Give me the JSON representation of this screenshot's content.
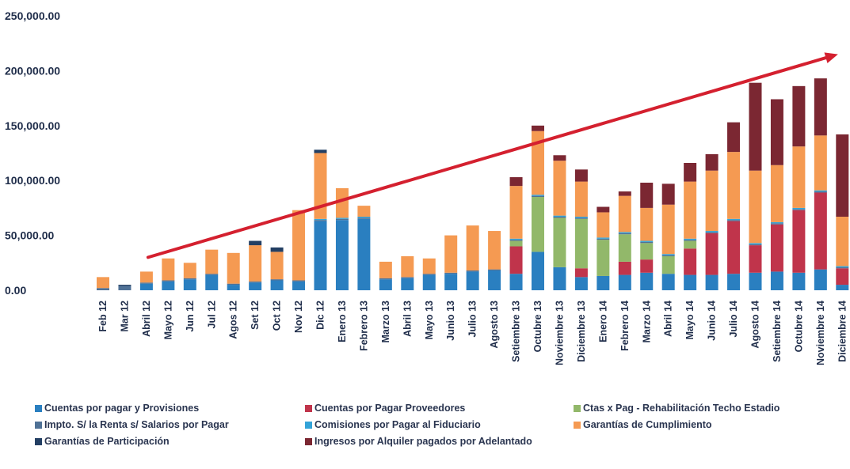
{
  "chart_data": {
    "type": "bar",
    "stacked": true,
    "categories": [
      "Feb 12",
      "Mar 12",
      "Abril 12",
      "Mayo 12",
      "Jun 12",
      "Jul 12",
      "Agos 12",
      "Set 12",
      "Oct 12",
      "Nov 12",
      "Dic 12",
      "Enero 13",
      "Febrero 13",
      "Marzo 13",
      "Abril 13",
      "Mayo 13",
      "Junio 13",
      "Julio 13",
      "Agosto 13",
      "Setiembre 13",
      "Octubre 13",
      "Noviembre 13",
      "Diciembre 13",
      "Enero 14",
      "Febrero 14",
      "Marzo 14",
      "Abril 14",
      "Mayo 14",
      "Junio 14",
      "Julio 14",
      "Agosto 14",
      "Setiembre 14",
      "Octubre 14",
      "Noviembre 14",
      "Diciembre 14"
    ],
    "yticks": [
      "0.00",
      "50,000.00",
      "100,000.00",
      "150,000.00",
      "200,000.00",
      "250,000.00"
    ],
    "ylim": [
      0,
      250000
    ],
    "title": "",
    "xlabel": "",
    "ylabel": "",
    "legend_position": "bottom",
    "trend_arrow": {
      "from": {
        "category": "Abril 12",
        "value": 30000
      },
      "to": {
        "category": "Noviembre 14",
        "value": 215000
      },
      "color": "#d4202f"
    },
    "series": [
      {
        "name": "Cuentas por pagar y Provisiones",
        "color": "#2a7fc0",
        "values": [
          0,
          0,
          6000,
          8000,
          10000,
          14000,
          5000,
          7000,
          9000,
          8000,
          63000,
          64000,
          65000,
          10000,
          11000,
          14000,
          15000,
          17000,
          18000,
          15000,
          35000,
          21000,
          12000,
          13000,
          14000,
          16000,
          15000,
          14000,
          14000,
          15000,
          16000,
          17000,
          16000,
          19000,
          5000
        ]
      },
      {
        "name": "Cuentas por Pagar Proveedores",
        "color": "#c0344b",
        "values": [
          0,
          0,
          0,
          0,
          0,
          0,
          0,
          0,
          0,
          0,
          0,
          0,
          0,
          0,
          0,
          0,
          0,
          0,
          0,
          25000,
          0,
          0,
          8000,
          0,
          12000,
          12000,
          0,
          24000,
          38000,
          48000,
          25000,
          43000,
          57000,
          70000,
          15000
        ]
      },
      {
        "name": "Ctas x Pag - Rehabilitación Techo Estadio",
        "color": "#92b86a",
        "values": [
          0,
          0,
          0,
          0,
          0,
          0,
          0,
          0,
          0,
          0,
          0,
          0,
          0,
          0,
          0,
          0,
          0,
          0,
          0,
          5000,
          50000,
          45000,
          45000,
          33000,
          25000,
          15000,
          16000,
          7000,
          0,
          0,
          0,
          0,
          0,
          0,
          0
        ]
      },
      {
        "name": "Impto. S/ la Renta s/ Salarios por Pagar",
        "color": "#4f7196",
        "values": [
          2000,
          4000,
          1000,
          1000,
          1000,
          1000,
          1000,
          1000,
          1000,
          1000,
          1000,
          1000,
          1000,
          1000,
          1000,
          1000,
          1000,
          1000,
          1000,
          1000,
          1000,
          1000,
          1000,
          1000,
          1000,
          1000,
          1000,
          1000,
          1000,
          1000,
          1000,
          1000,
          1000,
          1000,
          1000
        ]
      },
      {
        "name": "Comisiones por Pagar al Fiduciario",
        "color": "#33a3d8",
        "values": [
          0,
          0,
          0,
          0,
          0,
          0,
          0,
          0,
          0,
          0,
          1000,
          1000,
          1000,
          0,
          0,
          0,
          0,
          0,
          0,
          1000,
          1000,
          1000,
          1000,
          1000,
          1000,
          1000,
          1000,
          1000,
          1000,
          1000,
          1000,
          1000,
          1000,
          1000,
          1000
        ]
      },
      {
        "name": "Garantías de Cumplimiento",
        "color": "#f59a52",
        "values": [
          10000,
          0,
          10000,
          20000,
          14000,
          22000,
          28000,
          33000,
          25000,
          64000,
          60000,
          27000,
          10000,
          15000,
          19000,
          14000,
          34000,
          41000,
          35000,
          48000,
          58000,
          50000,
          32000,
          23000,
          33000,
          30000,
          45000,
          52000,
          55000,
          61000,
          66000,
          52000,
          56000,
          50000,
          45000
        ]
      },
      {
        "name": "Garantías de Participación",
        "color": "#233f63",
        "values": [
          0,
          1000,
          0,
          0,
          0,
          0,
          0,
          4000,
          4000,
          0,
          3000,
          0,
          0,
          0,
          0,
          0,
          0,
          0,
          0,
          0,
          0,
          0,
          0,
          0,
          0,
          0,
          0,
          0,
          0,
          0,
          0,
          0,
          0,
          0,
          0
        ]
      },
      {
        "name": "Ingresos por Alquiler pagados por Adelantado",
        "color": "#7b2732",
        "values": [
          0,
          0,
          0,
          0,
          0,
          0,
          0,
          0,
          0,
          0,
          0,
          0,
          0,
          0,
          0,
          0,
          0,
          0,
          0,
          8000,
          5000,
          5000,
          11000,
          5000,
          4000,
          23000,
          19000,
          17000,
          15000,
          27000,
          80000,
          60000,
          55000,
          52000,
          75000
        ]
      }
    ]
  }
}
